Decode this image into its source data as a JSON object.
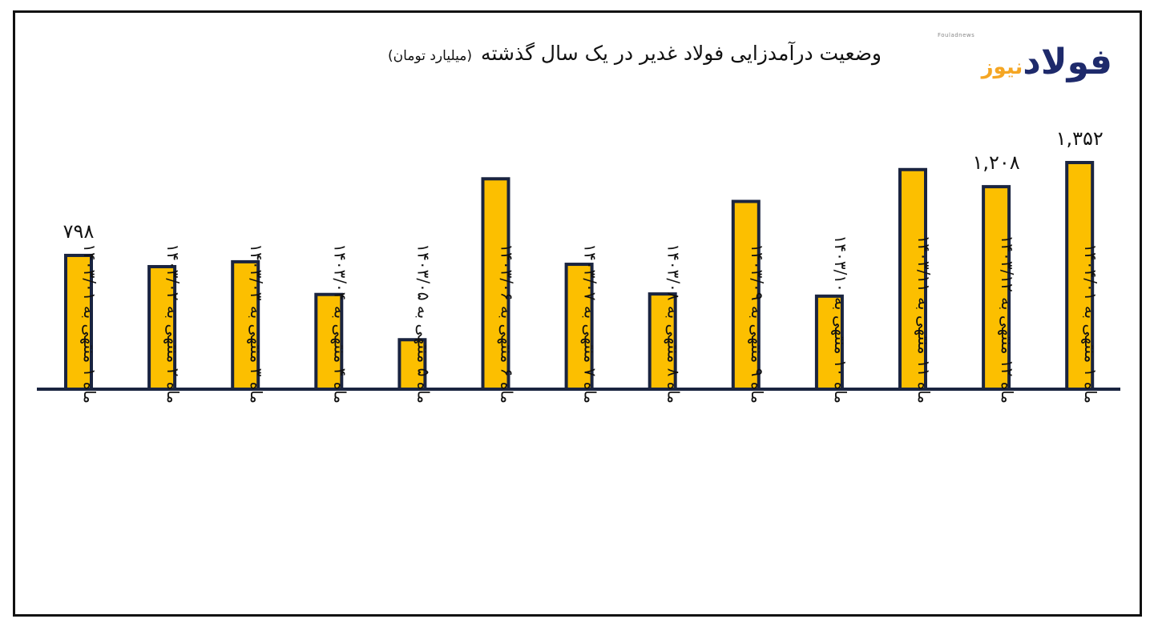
{
  "title": "وضعیت درآمدزایی فولاد غدیر در یک سال گذشته",
  "unit": "(میلیارد تومان)",
  "logo": {
    "small": "Fouladnews",
    "main": "فولاد",
    "accent": "نیوز",
    "color_main": "#1e2a6b",
    "color_accent": "#f5a623"
  },
  "colors": {
    "bar_fill": "#fcbf00",
    "bar_stroke": "#1a2440",
    "axis": "#1a2440"
  },
  "chart_data": {
    "type": "bar",
    "title": "وضعیت درآمدزایی فولاد غدیر در یک سال گذشته",
    "ylabel": "",
    "xlabel": "",
    "ylim": [
      0,
      1500
    ],
    "categories": [
      "ماه ۱ منتهی به ۱۴۰۳/۰۱",
      "ماه ۲ منتهی به ۱۴۰۳/۰۲",
      "ماه ۳ منتهی به ۱۴۰۳/۰۳",
      "ماه ۴ منتهی به ۱۴۰۳/۰۴",
      "ماه ۵ منتهی به ۱۴۰۳/۰۵",
      "ماه ۶ منتهی به ۱۴۰۳/۰۶",
      "ماه ۷ منتهی به ۱۴۰۳/۰۷",
      "ماه ۸ منتهی به ۱۴۰۳/۰۸",
      "ماه ۹ منتهی به ۱۴۰۳/۰۹",
      "ماه ۱۰ منتهی به ۱۴۰۳/۱۰",
      "ماه ۱۱ منتهی به ۱۴۰۳/۱۱",
      "ماه ۱۲ منتهی به ۱۴۰۳/۱۲",
      "ماه ۱ منتهی به ۱۴۰۴/۰۱"
    ],
    "values": [
      798,
      731,
      760,
      565,
      295,
      1255,
      745,
      568,
      1120,
      555,
      1310,
      1208,
      1352
    ],
    "data_labels": [
      {
        "index": 0,
        "text": "۷۹۸"
      },
      {
        "index": 11,
        "text": "۱,۲۰۸"
      },
      {
        "index": 12,
        "text": "۱,۳۵۲"
      }
    ],
    "grid": false,
    "legend": "none"
  }
}
